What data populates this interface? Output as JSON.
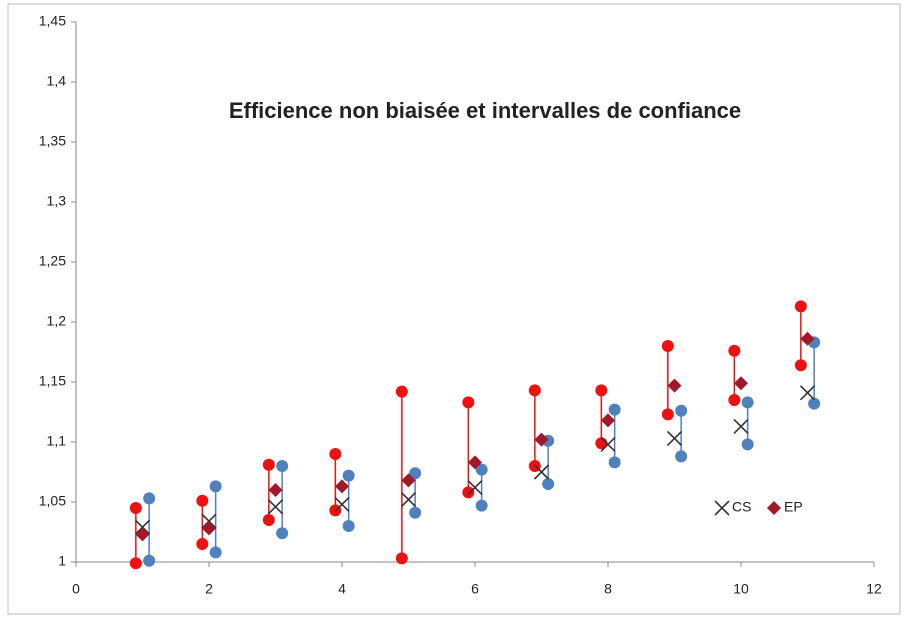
{
  "chart_data": {
    "type": "scatter",
    "title": "Efficience non biaisée et intervalles de confiance",
    "xlim": [
      0,
      12
    ],
    "xticks": [
      0,
      2,
      4,
      6,
      8,
      10,
      12
    ],
    "ylim": [
      1,
      1.45
    ],
    "yticks": [
      1,
      {
        "value": 1.05,
        "label": "1,05"
      },
      {
        "value": 1.1,
        "label": "1,1"
      },
      {
        "value": 1.15,
        "label": "1,15"
      },
      {
        "value": 1.2,
        "label": "1,2"
      },
      {
        "value": 1.25,
        "label": "1,25"
      },
      {
        "value": 1.3,
        "label": "1,3"
      },
      {
        "value": 1.35,
        "label": "1,35"
      },
      {
        "value": 1.4,
        "label": "1,4"
      },
      {
        "value": 1.45,
        "label": "1,45"
      }
    ],
    "legend": "lower right",
    "series": [
      {
        "name": "CS",
        "marker": "x",
        "color": "#333333",
        "x": [
          1,
          2,
          3,
          4,
          5,
          6,
          7,
          8,
          9,
          10,
          11
        ],
        "values": [
          1.029,
          1.034,
          1.046,
          1.048,
          1.052,
          1.062,
          1.075,
          1.098,
          1.103,
          1.113,
          1.141
        ]
      },
      {
        "name": "EP",
        "marker": "diamond",
        "color": "#a0182a",
        "x": [
          1,
          2,
          3,
          4,
          5,
          6,
          7,
          8,
          9,
          10,
          11
        ],
        "values": [
          1.023,
          1.028,
          1.06,
          1.063,
          1.068,
          1.083,
          1.102,
          1.118,
          1.147,
          1.149,
          1.186
        ]
      }
    ],
    "intervals": [
      {
        "color": "#ee1111",
        "x": [
          0.9,
          1.9,
          2.9,
          3.9,
          4.9,
          5.9,
          6.9,
          7.9,
          8.9,
          9.9,
          10.9
        ],
        "low": [
          0.999,
          1.015,
          1.035,
          1.043,
          1.003,
          1.058,
          1.08,
          1.099,
          1.123,
          1.135,
          1.164
        ],
        "high": [
          1.045,
          1.051,
          1.081,
          1.09,
          1.142,
          1.133,
          1.143,
          1.143,
          1.18,
          1.176,
          1.213
        ]
      },
      {
        "color": "#4f81bd",
        "x": [
          1.1,
          2.1,
          3.1,
          4.1,
          5.1,
          6.1,
          7.1,
          8.1,
          9.1,
          10.1,
          11.1
        ],
        "low": [
          1.001,
          1.008,
          1.024,
          1.03,
          1.041,
          1.047,
          1.065,
          1.083,
          1.088,
          1.098,
          1.132
        ],
        "high": [
          1.053,
          1.063,
          1.08,
          1.072,
          1.074,
          1.077,
          1.101,
          1.127,
          1.126,
          1.133,
          1.183
        ]
      }
    ]
  }
}
